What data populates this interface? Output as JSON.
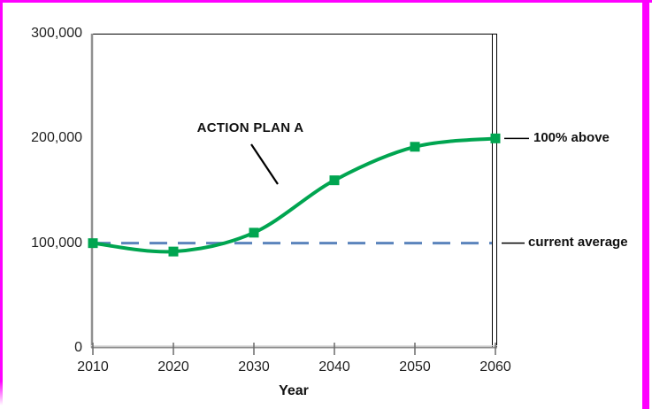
{
  "colors": {
    "frame_border": "#FF00FF",
    "series_green": "#00A550",
    "reference_blue": "#5B84BC",
    "axis_gray": "#909090",
    "plot_border_black": "#000000",
    "text_black": "#111111",
    "background": "#FFFFFF"
  },
  "chart_data": {
    "type": "line",
    "title": "",
    "xlabel": "Year",
    "ylabel": "",
    "x": [
      2010,
      2020,
      2030,
      2040,
      2050,
      2060
    ],
    "x_tick_labels": [
      "2010",
      "2020",
      "2030",
      "2040",
      "2050",
      "2060"
    ],
    "y_ticks": [
      0,
      100000,
      200000,
      300000
    ],
    "y_tick_labels": [
      "0",
      "100,000",
      "200,000",
      "300,000"
    ],
    "xlim": [
      2010,
      2060
    ],
    "ylim": [
      0,
      300000
    ],
    "grid": false,
    "legend_position": "none",
    "series": [
      {
        "name": "ACTION PLAN A",
        "values": [
          100000,
          92000,
          110000,
          160000,
          192000,
          200000
        ],
        "color": "#00A550",
        "marker": "square",
        "line_style": "smooth-solid"
      }
    ],
    "reference_line": {
      "value": 100000,
      "label": "current average",
      "color": "#5B84BC",
      "style": "dashed"
    },
    "annotations": {
      "series_label": "ACTION PLAN A",
      "endpoint_label": "100% above"
    }
  }
}
